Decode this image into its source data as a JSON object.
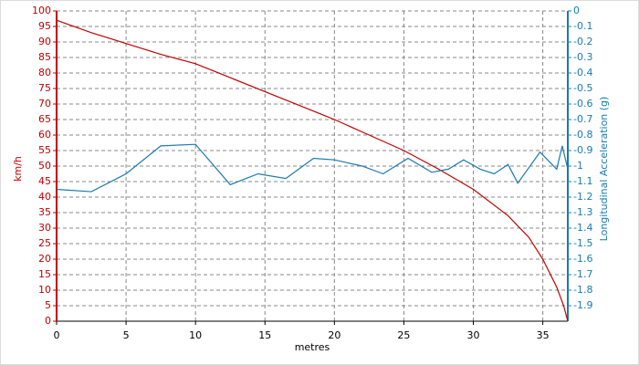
{
  "chart_data": {
    "type": "line",
    "xlabel": "metres",
    "ylabel": "km/h",
    "y2label": "Longitudinal Acceleration (g)",
    "xlim": [
      0,
      36.8
    ],
    "xticks": [
      0,
      5,
      10,
      15,
      20,
      25,
      30,
      35
    ],
    "ylim": [
      0,
      100
    ],
    "yticks": [
      0,
      5,
      10,
      15,
      20,
      25,
      30,
      35,
      40,
      45,
      50,
      55,
      60,
      65,
      70,
      75,
      80,
      85,
      90,
      95,
      100
    ],
    "y2lim": [
      -2,
      0
    ],
    "y2ticks": [
      0,
      -0.1,
      -0.2,
      -0.3,
      -0.4,
      -0.5,
      -0.6,
      -0.7,
      -0.8,
      -0.9,
      -1,
      -1.1,
      -1.2,
      -1.3,
      -1.4,
      -1.5,
      -1.6,
      -1.7,
      -1.8,
      -1.9
    ],
    "grid": true,
    "ycolor": "#c00000",
    "y2color": "#1a7ab0",
    "series": [
      {
        "color": "#c00000",
        "x": [
          0,
          2.5,
          5,
          7.5,
          10,
          12.5,
          15,
          17.5,
          20,
          22.5,
          25,
          27.5,
          30,
          32.5,
          34,
          35,
          36,
          36.5,
          36.8
        ],
        "values": [
          97,
          93,
          89.5,
          86,
          83,
          78.5,
          74,
          69.5,
          65,
          60,
          55,
          49,
          42.5,
          34,
          27,
          20,
          11,
          5,
          0
        ]
      },
      {
        "color": "#1a7ab0",
        "axis": "y2",
        "x": [
          0,
          2.5,
          5,
          7.5,
          10,
          12.5,
          14.5,
          16.5,
          18.5,
          20,
          22,
          23.5,
          25.3,
          27,
          28.2,
          29.3,
          30.5,
          31.5,
          32.5,
          33.2,
          34.8,
          36,
          36.4,
          36.8
        ],
        "values": [
          -1.15,
          -1.165,
          -1.05,
          -0.87,
          -0.86,
          -1.12,
          -1.05,
          -1.08,
          -0.95,
          -0.96,
          -1.0,
          -1.05,
          -0.95,
          -1.04,
          -1.02,
          -0.96,
          -1.02,
          -1.05,
          -0.99,
          -1.11,
          -0.91,
          -1.02,
          -0.87,
          -1.02
        ]
      }
    ]
  }
}
